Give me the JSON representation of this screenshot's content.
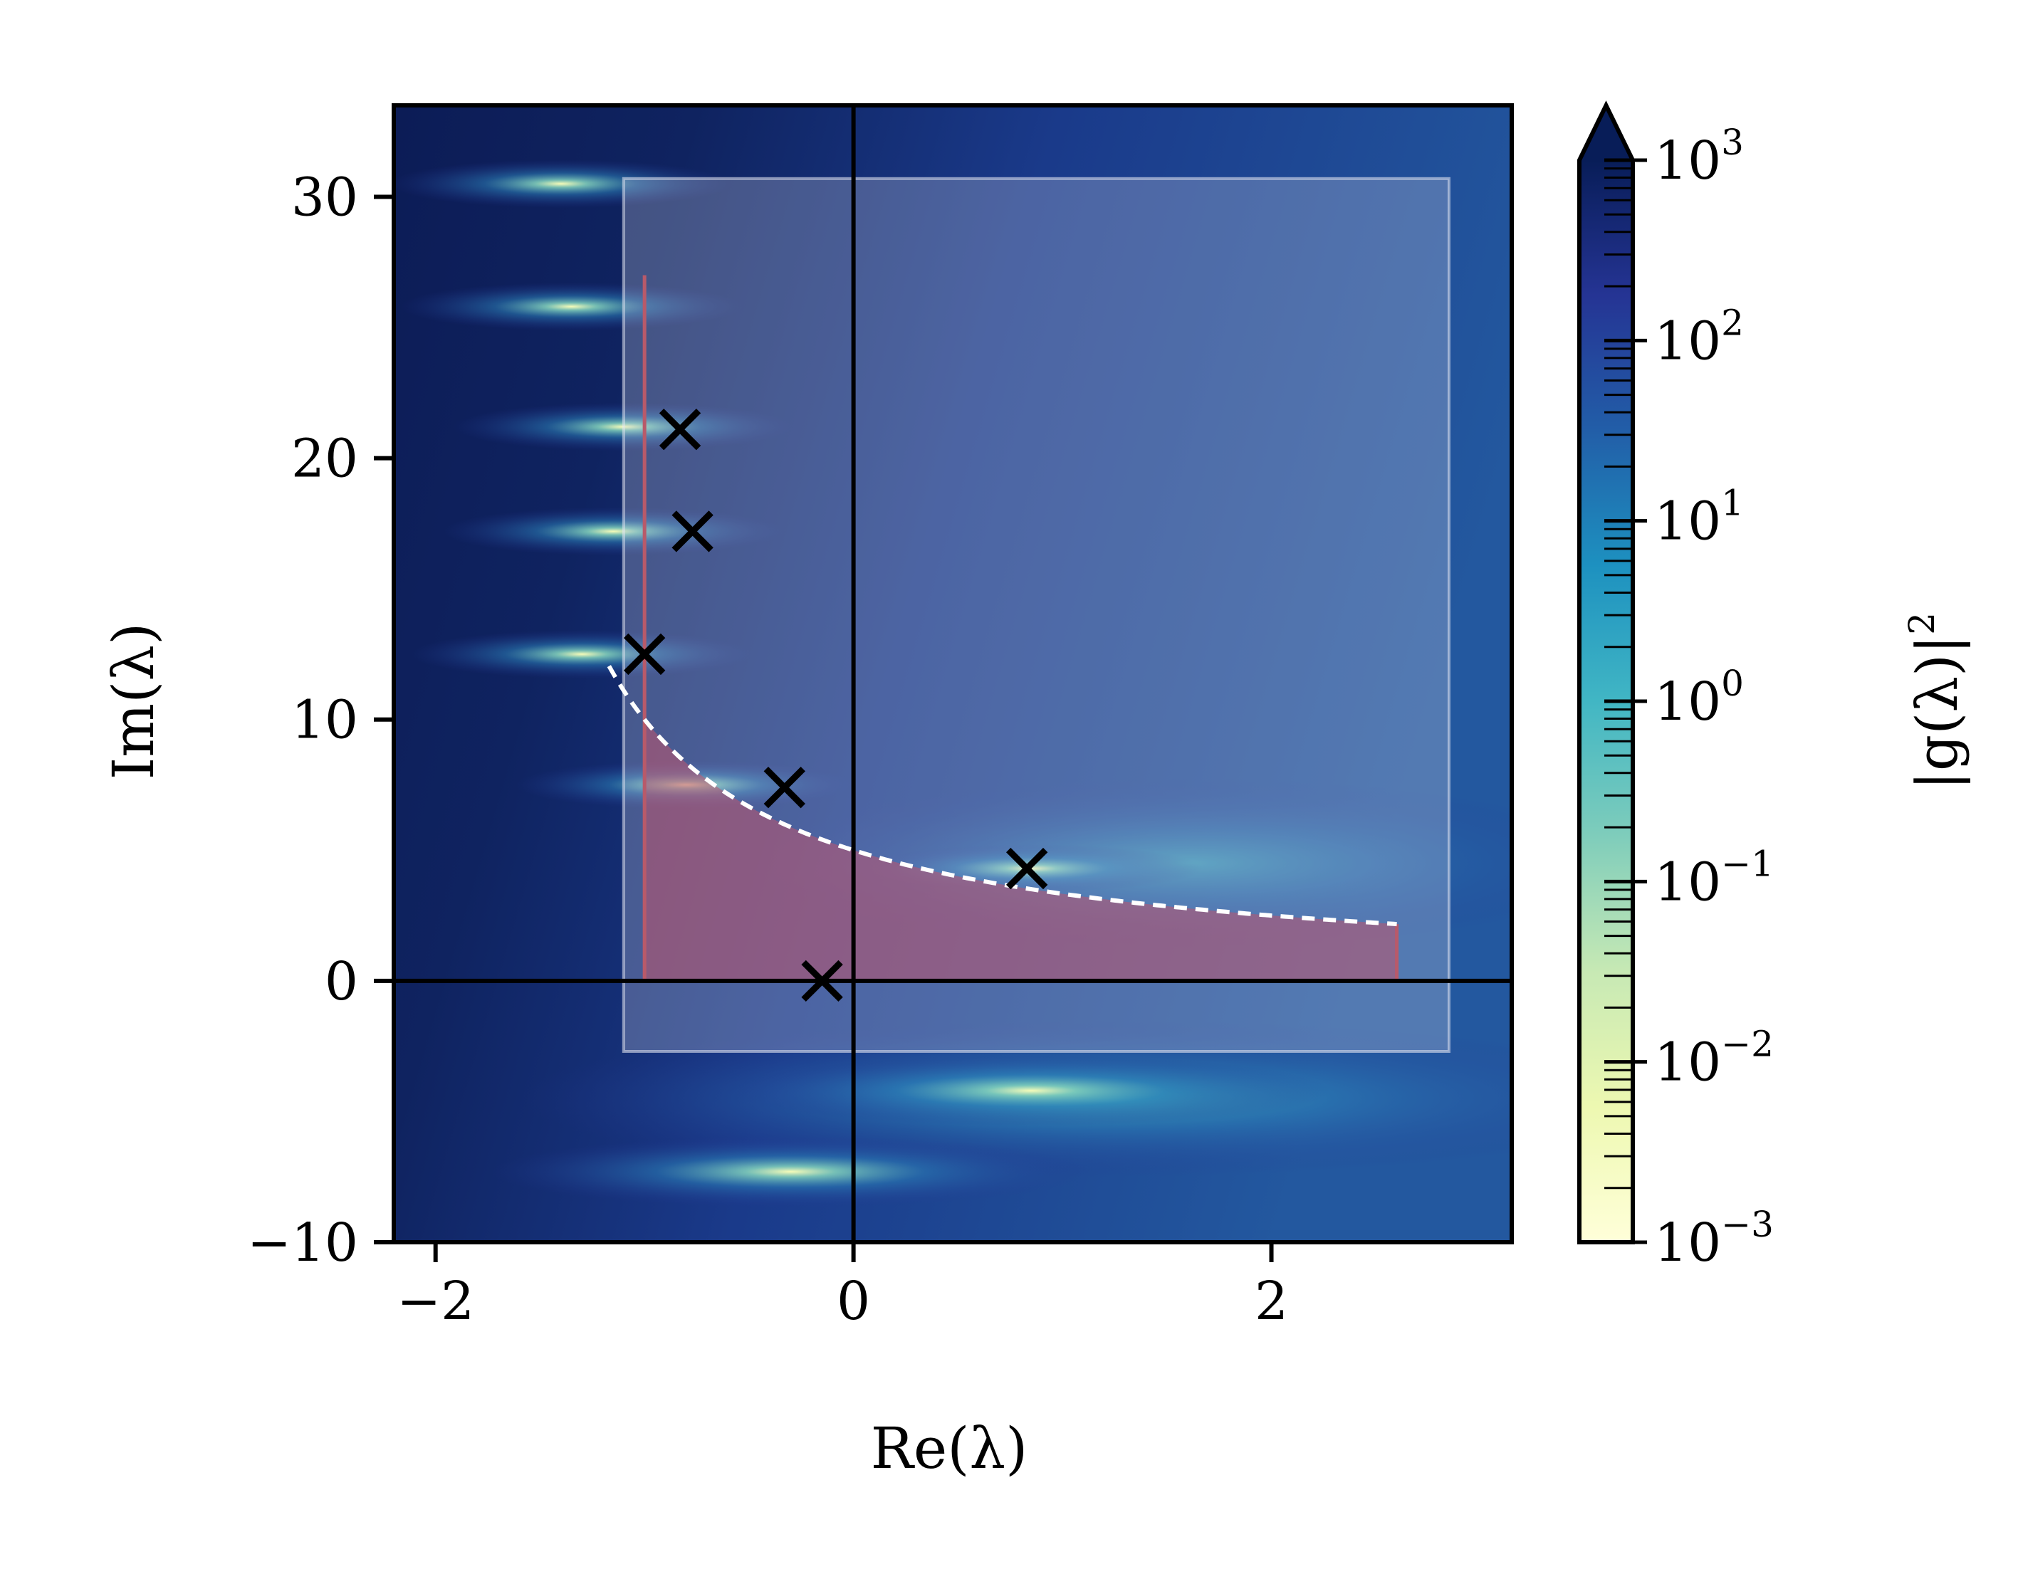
{
  "chart_data": {
    "type": "heatmap",
    "title": "",
    "xlabel": "Re(λ)",
    "ylabel": "Im(λ)",
    "xlim": [
      -2.2,
      3.15
    ],
    "ylim": [
      -10,
      33.5
    ],
    "x_ticks": [
      {
        "value": -2,
        "label": "−2"
      },
      {
        "value": 0,
        "label": "0"
      },
      {
        "value": 2,
        "label": "2"
      }
    ],
    "y_ticks": [
      {
        "value": -10,
        "label": "−10"
      },
      {
        "value": 0,
        "label": "0"
      },
      {
        "value": 10,
        "label": "10"
      },
      {
        "value": 20,
        "label": "20"
      },
      {
        "value": 30,
        "label": "30"
      }
    ],
    "grid": false,
    "colormap": "YlGnBu",
    "colorbar": {
      "label": "|g(λ)|",
      "label_exponent": "2",
      "scale": "log",
      "range": [
        0.001,
        1000
      ],
      "extend": "max",
      "ticks": [
        {
          "value": 0.001,
          "base": "10",
          "exp": "−3"
        },
        {
          "value": 0.01,
          "base": "10",
          "exp": "−2"
        },
        {
          "value": 0.1,
          "base": "10",
          "exp": "−1"
        },
        {
          "value": 1,
          "base": "10",
          "exp": "0"
        },
        {
          "value": 10,
          "base": "10",
          "exp": "1"
        },
        {
          "value": 100,
          "base": "10",
          "exp": "2"
        },
        {
          "value": 1000,
          "base": "10",
          "exp": "3"
        }
      ]
    },
    "axis_lines": {
      "x": 0,
      "y": 0
    },
    "bright_spots": [
      {
        "re": -1.4,
        "im": 30.5
      },
      {
        "re": -1.35,
        "im": 25.8
      },
      {
        "re": -1.1,
        "im": 21.2
      },
      {
        "re": -1.15,
        "im": 17.2
      },
      {
        "re": -1.3,
        "im": 12.5
      },
      {
        "re": -0.8,
        "im": 7.5
      },
      {
        "re": 0.85,
        "im": 4.3
      },
      {
        "re": 0.85,
        "im": -4.2
      },
      {
        "re": -0.3,
        "im": -7.3
      }
    ],
    "rectangle_region": {
      "re_min": -1.1,
      "re_max": 2.85,
      "im_min": -2.7,
      "im_max": 30.7
    },
    "shaded_region": {
      "re_min": -1.0,
      "re_max": 2.6,
      "im_min": 0,
      "curve": "im = 10/(re + 2)"
    },
    "boundary_curve": {
      "formula": "im = 10/(re + 2)",
      "style": "dashed white",
      "re_from": -1.17,
      "re_to": 2.6
    },
    "markers": {
      "symbol": "x",
      "color": "#000000",
      "points": [
        {
          "re": -0.83,
          "im": 21.1
        },
        {
          "re": -0.77,
          "im": 17.2
        },
        {
          "re": -1.0,
          "im": 12.5
        },
        {
          "re": -0.33,
          "im": 7.4
        },
        {
          "re": -0.15,
          "im": 0.0
        },
        {
          "re": 0.83,
          "im": 4.3
        }
      ]
    },
    "colors": {
      "background_dark": "#0c1c56",
      "rectangle_overlay": "#cfd3e6",
      "shaded_region": "#c0566e",
      "boundary_curve": "#ffffff",
      "dashed_edge": "#b85a6a"
    }
  }
}
